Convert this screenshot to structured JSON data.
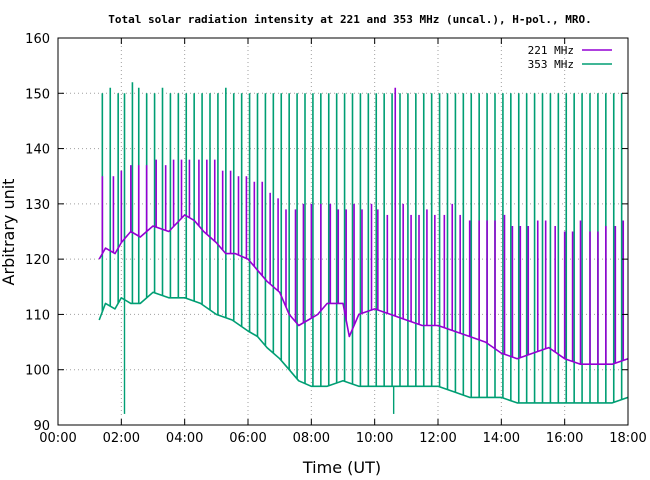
{
  "chart_data": {
    "type": "line",
    "title": "Total solar radiation intensity at 221 and 353 MHz (uncal.), H-pol., MRO.",
    "xlabel": "Time (UT)",
    "ylabel": "Arbitrary unit",
    "xlim": [
      0,
      18
    ],
    "ylim": [
      90,
      160
    ],
    "x_ticks": [
      0,
      2,
      4,
      6,
      8,
      10,
      12,
      14,
      16,
      18
    ],
    "x_tick_labels": [
      "00:00",
      "02:00",
      "04:00",
      "06:00",
      "08:00",
      "10:00",
      "12:00",
      "14:00",
      "16:00",
      "18:00"
    ],
    "y_ticks": [
      90,
      100,
      110,
      120,
      130,
      140,
      150,
      160
    ],
    "y_tick_labels": [
      "90",
      "100",
      "110",
      "120",
      "130",
      "140",
      "150",
      "160"
    ],
    "grid": true,
    "legend_position": "top-right",
    "series": [
      {
        "name": "221 MHz",
        "color": "#9400d3",
        "x": [
          1.3,
          1.5,
          1.8,
          2.0,
          2.3,
          2.6,
          3.0,
          3.5,
          4.0,
          4.3,
          4.6,
          5.0,
          5.3,
          5.6,
          6.0,
          6.3,
          6.6,
          7.0,
          7.3,
          7.6,
          7.9,
          8.2,
          8.5,
          9.0,
          9.2,
          9.5,
          10.0,
          10.5,
          11.0,
          11.5,
          12.0,
          12.5,
          13.0,
          13.5,
          14.0,
          14.5,
          15.0,
          15.5,
          16.0,
          16.5,
          17.0,
          17.5,
          18.0
        ],
        "y": [
          120,
          122,
          121,
          123,
          125,
          124,
          126,
          125,
          128,
          127,
          125,
          123,
          121,
          121,
          120,
          118,
          116,
          114,
          110,
          108,
          109,
          110,
          112,
          112,
          106,
          110,
          111,
          110,
          109,
          108,
          108,
          107,
          106,
          105,
          103,
          102,
          103,
          104,
          102,
          101,
          101,
          101,
          102
        ]
      },
      {
        "name": "353 MHz",
        "color": "#009e73",
        "x": [
          1.3,
          1.5,
          1.8,
          2.0,
          2.3,
          2.6,
          3.0,
          3.5,
          4.0,
          4.5,
          5.0,
          5.5,
          6.0,
          6.3,
          6.6,
          7.0,
          7.3,
          7.6,
          8.0,
          8.5,
          9.0,
          9.5,
          10.0,
          10.5,
          11.0,
          11.5,
          12.0,
          12.5,
          13.0,
          13.5,
          14.0,
          14.5,
          15.0,
          15.5,
          16.0,
          16.5,
          17.0,
          17.5,
          18.0
        ],
        "y": [
          109,
          112,
          111,
          113,
          112,
          112,
          114,
          113,
          113,
          112,
          110,
          109,
          107,
          106,
          104,
          102,
          100,
          98,
          97,
          97,
          98,
          97,
          97,
          97,
          97,
          97,
          97,
          96,
          95,
          95,
          95,
          94,
          94,
          94,
          94,
          94,
          94,
          94,
          95
        ]
      }
    ],
    "spikes": {
      "221 MHz": [
        [
          1.4,
          135
        ],
        [
          1.75,
          135
        ],
        [
          2.0,
          136
        ],
        [
          2.3,
          137
        ],
        [
          2.55,
          137
        ],
        [
          2.8,
          137
        ],
        [
          3.1,
          138
        ],
        [
          3.4,
          137
        ],
        [
          3.65,
          138
        ],
        [
          3.9,
          138
        ],
        [
          4.15,
          138
        ],
        [
          4.45,
          138
        ],
        [
          4.7,
          138
        ],
        [
          4.95,
          138
        ],
        [
          5.2,
          136
        ],
        [
          5.45,
          136
        ],
        [
          5.7,
          135
        ],
        [
          5.95,
          135
        ],
        [
          6.2,
          134
        ],
        [
          6.45,
          134
        ],
        [
          6.7,
          132
        ],
        [
          6.95,
          131
        ],
        [
          7.2,
          129
        ],
        [
          7.5,
          129
        ],
        [
          7.75,
          130
        ],
        [
          8.0,
          130
        ],
        [
          8.3,
          130
        ],
        [
          8.6,
          130
        ],
        [
          8.85,
          129
        ],
        [
          9.1,
          129
        ],
        [
          9.35,
          130
        ],
        [
          9.6,
          129
        ],
        [
          9.9,
          130
        ],
        [
          10.1,
          129
        ],
        [
          10.4,
          128
        ],
        [
          10.65,
          151
        ],
        [
          10.9,
          130
        ],
        [
          11.15,
          128
        ],
        [
          11.4,
          128
        ],
        [
          11.65,
          129
        ],
        [
          11.9,
          128
        ],
        [
          12.2,
          128
        ],
        [
          12.45,
          130
        ],
        [
          12.7,
          128
        ],
        [
          13.0,
          127
        ],
        [
          13.3,
          127
        ],
        [
          13.55,
          127
        ],
        [
          13.8,
          127
        ],
        [
          14.1,
          128
        ],
        [
          14.35,
          126
        ],
        [
          14.6,
          126
        ],
        [
          14.85,
          126
        ],
        [
          15.15,
          127
        ],
        [
          15.4,
          127
        ],
        [
          15.7,
          126
        ],
        [
          16.0,
          125
        ],
        [
          16.25,
          125
        ],
        [
          16.5,
          127
        ],
        [
          16.8,
          125
        ],
        [
          17.05,
          125
        ],
        [
          17.3,
          126
        ],
        [
          17.6,
          126
        ],
        [
          17.85,
          127
        ]
      ],
      "353 MHz": [
        [
          1.4,
          150
        ],
        [
          1.65,
          151
        ],
        [
          1.9,
          150
        ],
        [
          2.1,
          150
        ],
        [
          2.35,
          152
        ],
        [
          2.55,
          151
        ],
        [
          2.8,
          150
        ],
        [
          3.05,
          150
        ],
        [
          3.3,
          151
        ],
        [
          3.55,
          150
        ],
        [
          3.8,
          150
        ],
        [
          4.05,
          150
        ],
        [
          4.3,
          150
        ],
        [
          4.55,
          150
        ],
        [
          4.8,
          150
        ],
        [
          5.05,
          150
        ],
        [
          5.3,
          151
        ],
        [
          5.55,
          150
        ],
        [
          5.8,
          150
        ],
        [
          6.05,
          150
        ],
        [
          6.3,
          150
        ],
        [
          6.55,
          150
        ],
        [
          6.8,
          150
        ],
        [
          7.05,
          150
        ],
        [
          7.3,
          150
        ],
        [
          7.55,
          150
        ],
        [
          7.8,
          150
        ],
        [
          8.05,
          150
        ],
        [
          8.3,
          150
        ],
        [
          8.55,
          150
        ],
        [
          8.8,
          150
        ],
        [
          9.05,
          150
        ],
        [
          9.3,
          150
        ],
        [
          9.55,
          150
        ],
        [
          9.8,
          150
        ],
        [
          10.05,
          150
        ],
        [
          10.3,
          150
        ],
        [
          10.55,
          150
        ],
        [
          10.8,
          150
        ],
        [
          11.05,
          150
        ],
        [
          11.3,
          150
        ],
        [
          11.55,
          150
        ],
        [
          11.8,
          150
        ],
        [
          12.05,
          150
        ],
        [
          12.3,
          150
        ],
        [
          12.55,
          150
        ],
        [
          12.8,
          150
        ],
        [
          13.05,
          150
        ],
        [
          13.3,
          150
        ],
        [
          13.55,
          150
        ],
        [
          13.8,
          150
        ],
        [
          14.05,
          150
        ],
        [
          14.3,
          150
        ],
        [
          14.55,
          150
        ],
        [
          14.8,
          150
        ],
        [
          15.05,
          150
        ],
        [
          15.3,
          150
        ],
        [
          15.55,
          150
        ],
        [
          15.8,
          150
        ],
        [
          16.05,
          150
        ],
        [
          16.3,
          150
        ],
        [
          16.55,
          150
        ],
        [
          16.8,
          150
        ],
        [
          17.05,
          150
        ],
        [
          17.3,
          150
        ],
        [
          17.55,
          150
        ],
        [
          17.8,
          150
        ]
      ]
    },
    "dips": {
      "353 MHz": [
        [
          2.1,
          92
        ],
        [
          10.6,
          92
        ]
      ]
    }
  }
}
